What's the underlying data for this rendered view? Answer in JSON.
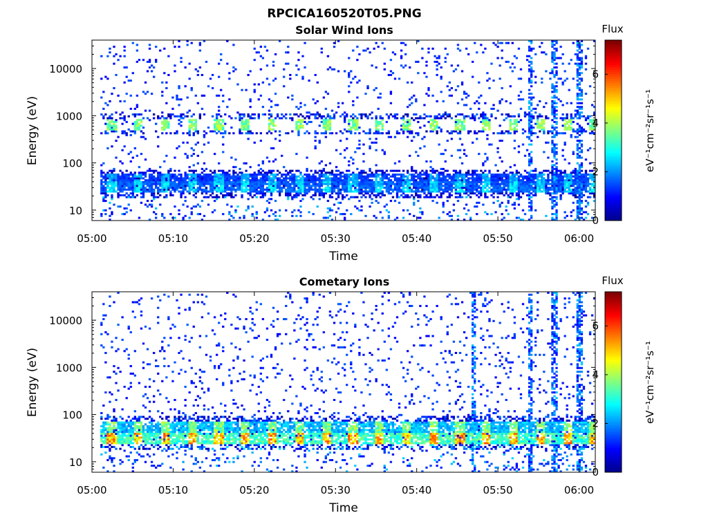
{
  "figure": {
    "title": "RPCICA160520T05.PNG"
  },
  "colorbar": {
    "colormap": "jet",
    "colors": [
      "#00008f",
      "#0000ff",
      "#0080ff",
      "#00ffff",
      "#80ff80",
      "#ffff00",
      "#ff8000",
      "#ff0000",
      "#800000"
    ]
  },
  "chart_data": [
    {
      "type": "heatmap",
      "title": "Solar Wind Ions",
      "xlabel": "Time",
      "ylabel": "Energy (eV)",
      "yscale": "log",
      "ylim": [
        6,
        40000
      ],
      "xlim": [
        "05:00",
        "06:02"
      ],
      "x_ticks": [
        "05:00",
        "05:10",
        "05:20",
        "05:30",
        "05:40",
        "05:50",
        "06:00"
      ],
      "y_ticks": [
        10,
        100,
        1000,
        10000
      ],
      "y_tick_labels": [
        "10",
        "100",
        "1000",
        "10000"
      ],
      "colorbar_label": "Flux",
      "colorbar_unit": "eV⁻¹cm⁻²sr⁻¹s⁻¹",
      "colorbar_range": [
        0,
        7.4
      ],
      "colorbar_ticks": [
        0,
        2,
        4,
        6
      ],
      "bands": [
        {
          "energy_eV": 650,
          "flux": 4.3,
          "note": "periodic proton peak"
        },
        {
          "energy_eV": 45,
          "flux": 2.5
        },
        {
          "energy_eV": 30,
          "flux": 3.0
        }
      ],
      "spikes_at": [
        "05:54",
        "05:57",
        "06:00"
      ],
      "background_flux": 0.8
    },
    {
      "type": "heatmap",
      "title": "Cometary Ions",
      "xlabel": "Time",
      "ylabel": "Energy (eV)",
      "yscale": "log",
      "ylim": [
        6,
        40000
      ],
      "xlim": [
        "05:00",
        "06:02"
      ],
      "x_ticks": [
        "05:00",
        "05:10",
        "05:20",
        "05:30",
        "05:40",
        "05:50",
        "06:00"
      ],
      "y_ticks": [
        10,
        100,
        1000,
        10000
      ],
      "y_tick_labels": [
        "10",
        "100",
        "1000",
        "10000"
      ],
      "colorbar_label": "Flux",
      "colorbar_unit": "eV⁻¹cm⁻²sr⁻¹s⁻¹",
      "colorbar_range": [
        0,
        7.4
      ],
      "colorbar_ticks": [
        0,
        2,
        4,
        6
      ],
      "bands": [
        {
          "energy_eV": 30,
          "flux": 6.0,
          "note": "dense low-energy band"
        },
        {
          "energy_eV": 55,
          "flux": 4.3
        }
      ],
      "spikes_at": [
        "05:47",
        "05:54",
        "05:57",
        "06:00"
      ],
      "background_flux": 0.8
    }
  ]
}
